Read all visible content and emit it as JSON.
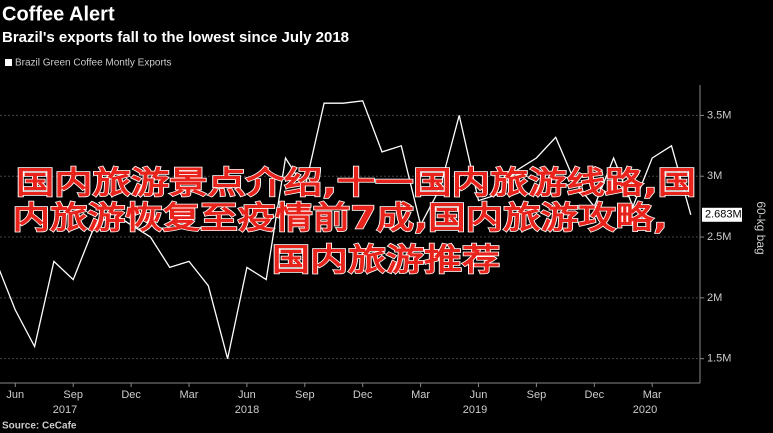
{
  "chart_data": {
    "type": "line",
    "title": "Coffee Alert",
    "subtitle": "Brazil's exports fall to the lowest since July 2018",
    "series": [
      {
        "name": "Brazil Green Coffee Montly Exports",
        "color": "#ffffff",
        "values": [
          2300000,
          1900000,
          1600000,
          2300000,
          2150000,
          2550000,
          2700000,
          2600000,
          2500000,
          2250000,
          2300000,
          2100000,
          1500000,
          2250000,
          2150000,
          3150000,
          2900000,
          3600000,
          3600000,
          3620000,
          3200000,
          3250000,
          2600000,
          2900000,
          3500000,
          2800000,
          2850000,
          3050000,
          3150000,
          3320000,
          2950000,
          2750000,
          3150000,
          2750000,
          3150000,
          3250000,
          2683000
        ]
      }
    ],
    "categories": [
      null,
      "Jun",
      null,
      null,
      "Sep",
      null,
      null,
      "Dec",
      null,
      null,
      "Mar",
      null,
      null,
      "Jun",
      null,
      null,
      "Sep",
      null,
      null,
      "Dec",
      null,
      null,
      "Mar",
      null,
      null,
      "Jun",
      null,
      null,
      "Sep",
      null,
      null,
      "Dec",
      null,
      null,
      "Mar",
      null,
      null
    ],
    "years": [
      "2017",
      "2018",
      "2019",
      "2020"
    ],
    "last_label": "2.683M",
    "y_axis_label": "60-kg bag",
    "source": "Source: CeCafe",
    "ylim": [
      1300000,
      3750000
    ],
    "yticks": [
      {
        "value": 1500000,
        "label": "1.5M"
      },
      {
        "value": 2000000,
        "label": "2M"
      },
      {
        "value": 2500000,
        "label": "2.5M"
      },
      {
        "value": 3000000,
        "label": "3M"
      },
      {
        "value": 3500000,
        "label": "3.5M"
      }
    ],
    "grid": true,
    "overlay_text": [
      "国内旅游景点介绍,十一国内旅游线路,国",
      "内旅游恢复至疫情前7成,国内旅游攻略,",
      "国内旅游推荐"
    ]
  }
}
